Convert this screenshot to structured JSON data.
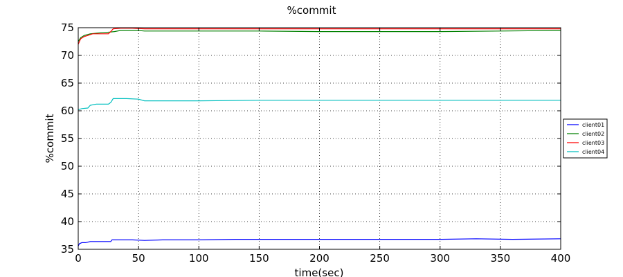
{
  "chart_data": {
    "type": "line",
    "title": "%commit",
    "xlabel": "time(sec)",
    "ylabel": "%commit",
    "xlim": [
      0,
      400
    ],
    "ylim": [
      35,
      75
    ],
    "xticks": [
      "0",
      "50",
      "100",
      "150",
      "200",
      "250",
      "300",
      "350",
      "400"
    ],
    "yticks": [
      "35",
      "40",
      "45",
      "50",
      "55",
      "60",
      "65",
      "70",
      "75"
    ],
    "grid": true,
    "legend_position": "right",
    "series": [
      {
        "name": "client01",
        "color": "#0000ff",
        "points": [
          [
            0,
            35.6
          ],
          [
            1,
            36.0
          ],
          [
            3,
            36.2
          ],
          [
            6,
            36.2
          ],
          [
            10,
            36.4
          ],
          [
            15,
            36.4
          ],
          [
            20,
            36.4
          ],
          [
            27,
            36.4
          ],
          [
            28,
            36.7
          ],
          [
            35,
            36.7
          ],
          [
            45,
            36.7
          ],
          [
            55,
            36.6
          ],
          [
            70,
            36.7
          ],
          [
            100,
            36.7
          ],
          [
            130,
            36.8
          ],
          [
            160,
            36.8
          ],
          [
            200,
            36.8
          ],
          [
            230,
            36.8
          ],
          [
            250,
            36.8
          ],
          [
            300,
            36.8
          ],
          [
            330,
            36.9
          ],
          [
            360,
            36.8
          ],
          [
            400,
            36.9
          ]
        ]
      },
      {
        "name": "client02",
        "color": "#008000",
        "points": [
          [
            0,
            72.5
          ],
          [
            2,
            73.2
          ],
          [
            5,
            73.6
          ],
          [
            10,
            73.9
          ],
          [
            15,
            74.0
          ],
          [
            20,
            74.1
          ],
          [
            26,
            74.2
          ],
          [
            30,
            74.3
          ],
          [
            35,
            74.5
          ],
          [
            40,
            74.5
          ],
          [
            50,
            74.5
          ],
          [
            55,
            74.4
          ],
          [
            100,
            74.4
          ],
          [
            150,
            74.4
          ],
          [
            200,
            74.3
          ],
          [
            250,
            74.3
          ],
          [
            300,
            74.3
          ],
          [
            350,
            74.4
          ],
          [
            400,
            74.5
          ]
        ]
      },
      {
        "name": "client03",
        "color": "#ff0000",
        "points": [
          [
            0,
            72.0
          ],
          [
            2,
            73.0
          ],
          [
            5,
            73.4
          ],
          [
            8,
            73.6
          ],
          [
            12,
            73.9
          ],
          [
            20,
            73.9
          ],
          [
            25,
            73.9
          ],
          [
            27,
            74.3
          ],
          [
            29,
            74.8
          ],
          [
            35,
            74.9
          ],
          [
            45,
            74.9
          ],
          [
            55,
            74.8
          ],
          [
            100,
            74.8
          ],
          [
            150,
            74.8
          ],
          [
            200,
            74.8
          ],
          [
            250,
            74.8
          ],
          [
            300,
            74.8
          ],
          [
            350,
            74.8
          ],
          [
            400,
            74.8
          ]
        ]
      },
      {
        "name": "client04",
        "color": "#00bfbf",
        "points": [
          [
            0,
            60.2
          ],
          [
            3,
            60.4
          ],
          [
            8,
            60.5
          ],
          [
            10,
            61.0
          ],
          [
            15,
            61.2
          ],
          [
            20,
            61.2
          ],
          [
            25,
            61.2
          ],
          [
            27,
            61.5
          ],
          [
            29,
            62.2
          ],
          [
            40,
            62.2
          ],
          [
            50,
            62.1
          ],
          [
            55,
            61.8
          ],
          [
            60,
            61.8
          ],
          [
            100,
            61.8
          ],
          [
            150,
            61.9
          ],
          [
            200,
            61.9
          ],
          [
            250,
            61.9
          ],
          [
            300,
            61.9
          ],
          [
            350,
            61.9
          ],
          [
            400,
            61.9
          ]
        ]
      }
    ]
  }
}
